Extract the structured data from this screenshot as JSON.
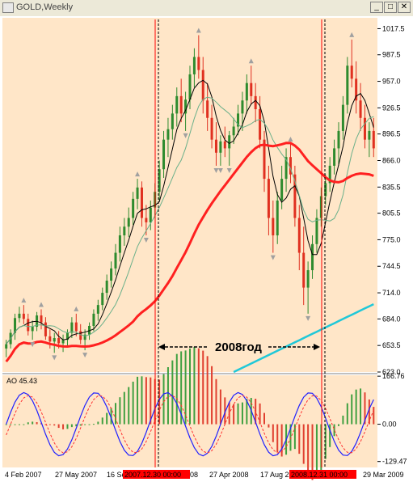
{
  "window": {
    "title": "GOLD,Weekly",
    "minimize_glyph": "_",
    "restore_glyph": "□",
    "close_glyph": "✕"
  },
  "chart_data": {
    "type": "line",
    "symbol": "GOLD",
    "timeframe": "Weekly",
    "main_panel": {
      "price_axis_labels": [
        "1017.5",
        "987.5",
        "957.0",
        "926.5",
        "896.5",
        "866.0",
        "835.5",
        "805.5",
        "775.0",
        "744.5",
        "714.0",
        "684.0",
        "653.5",
        "623.0"
      ],
      "ylim": [
        623.0,
        1030.0
      ],
      "annotation": "2008год",
      "candles": [
        [
          650,
          660,
          640,
          655
        ],
        [
          655,
          672,
          650,
          668
        ],
        [
          668,
          690,
          660,
          685
        ],
        [
          685,
          698,
          680,
          690
        ],
        [
          690,
          700,
          678,
          684
        ],
        [
          684,
          690,
          665,
          670
        ],
        [
          670,
          682,
          660,
          675
        ],
        [
          675,
          692,
          670,
          688
        ],
        [
          688,
          695,
          672,
          680
        ],
        [
          680,
          686,
          660,
          664
        ],
        [
          664,
          672,
          650,
          658
        ],
        [
          658,
          668,
          645,
          662
        ],
        [
          662,
          670,
          650,
          656
        ],
        [
          656,
          666,
          646,
          660
        ],
        [
          660,
          672,
          652,
          668
        ],
        [
          668,
          686,
          662,
          680
        ],
        [
          680,
          690,
          664,
          670
        ],
        [
          670,
          678,
          655,
          660
        ],
        [
          660,
          672,
          648,
          666
        ],
        [
          666,
          680,
          660,
          676
        ],
        [
          676,
          695,
          670,
          690
        ],
        [
          690,
          706,
          682,
          700
        ],
        [
          700,
          720,
          694,
          714
        ],
        [
          714,
          735,
          706,
          728
        ],
        [
          728,
          750,
          720,
          742
        ],
        [
          742,
          770,
          734,
          760
        ],
        [
          760,
          790,
          750,
          780
        ],
        [
          780,
          800,
          768,
          790
        ],
        [
          790,
          812,
          778,
          800
        ],
        [
          800,
          830,
          792,
          822
        ],
        [
          822,
          845,
          810,
          835
        ],
        [
          835,
          842,
          790,
          800
        ],
        [
          800,
          815,
          780,
          795
        ],
        [
          795,
          820,
          786,
          812
        ],
        [
          812,
          840,
          800,
          830
        ],
        [
          830,
          866,
          820,
          856
        ],
        [
          856,
          900,
          846,
          890
        ],
        [
          890,
          915,
          870,
          902
        ],
        [
          902,
          930,
          890,
          920
        ],
        [
          920,
          950,
          905,
          940
        ],
        [
          940,
          960,
          910,
          920
        ],
        [
          920,
          945,
          900,
          936
        ],
        [
          936,
          975,
          925,
          965
        ],
        [
          965,
          995,
          950,
          985
        ],
        [
          985,
          1010,
          960,
          970
        ],
        [
          970,
          985,
          920,
          935
        ],
        [
          935,
          955,
          900,
          915
        ],
        [
          915,
          930,
          880,
          890
        ],
        [
          890,
          910,
          860,
          875
        ],
        [
          875,
          895,
          860,
          888
        ],
        [
          888,
          905,
          870,
          880
        ],
        [
          880,
          900,
          860,
          895
        ],
        [
          895,
          915,
          885,
          905
        ],
        [
          905,
          930,
          895,
          920
        ],
        [
          920,
          945,
          900,
          935
        ],
        [
          935,
          965,
          920,
          955
        ],
        [
          955,
          975,
          930,
          940
        ],
        [
          940,
          955,
          910,
          925
        ],
        [
          925,
          940,
          880,
          890
        ],
        [
          890,
          900,
          830,
          845
        ],
        [
          845,
          860,
          780,
          800
        ],
        [
          800,
          820,
          760,
          780
        ],
        [
          780,
          830,
          770,
          820
        ],
        [
          820,
          860,
          810,
          845
        ],
        [
          845,
          880,
          830,
          870
        ],
        [
          870,
          885,
          840,
          850
        ],
        [
          850,
          860,
          790,
          800
        ],
        [
          800,
          815,
          740,
          760
        ],
        [
          760,
          790,
          700,
          720
        ],
        [
          720,
          750,
          690,
          740
        ],
        [
          740,
          780,
          730,
          770
        ],
        [
          770,
          810,
          760,
          800
        ],
        [
          800,
          835,
          790,
          825
        ],
        [
          825,
          850,
          815,
          840
        ],
        [
          840,
          870,
          830,
          860
        ],
        [
          860,
          890,
          850,
          880
        ],
        [
          880,
          910,
          860,
          900
        ],
        [
          900,
          940,
          890,
          930
        ],
        [
          930,
          985,
          920,
          975
        ],
        [
          975,
          1005,
          950,
          960
        ],
        [
          960,
          980,
          920,
          935
        ],
        [
          935,
          955,
          900,
          915
        ],
        [
          915,
          930,
          880,
          890
        ],
        [
          890,
          910,
          870,
          900
        ],
        [
          900,
          915,
          870,
          880
        ]
      ]
    },
    "ao_panel": {
      "label": "AO 45.43",
      "axis_labels": [
        "166.76",
        "0.00",
        "-129.47"
      ],
      "ylim": [
        -150.0,
        170.0
      ]
    },
    "date_labels": [
      "4 Feb 2007",
      "27 May 2007",
      "16 Se",
      "2007.12.30 00:00",
      "08",
      "27 Apr 2008",
      "17 Aug 2",
      "2008.12.31 00:00",
      "29 Mar 2009"
    ],
    "colors": {
      "background": "#ffe6c8",
      "bull_candle": "#2e8b2e",
      "bear_candle": "#e03020",
      "ma_fast": "#000000",
      "ma_mid": "#6ab08a",
      "ma_slow": "#ff2020",
      "ma_long": "#20c8d8",
      "vline": "#ff0000",
      "ao_blue": "#2020ff",
      "ao_red": "#ff3030",
      "ao_bar_green": "#40a040",
      "ao_bar_red": "#e04030"
    }
  }
}
